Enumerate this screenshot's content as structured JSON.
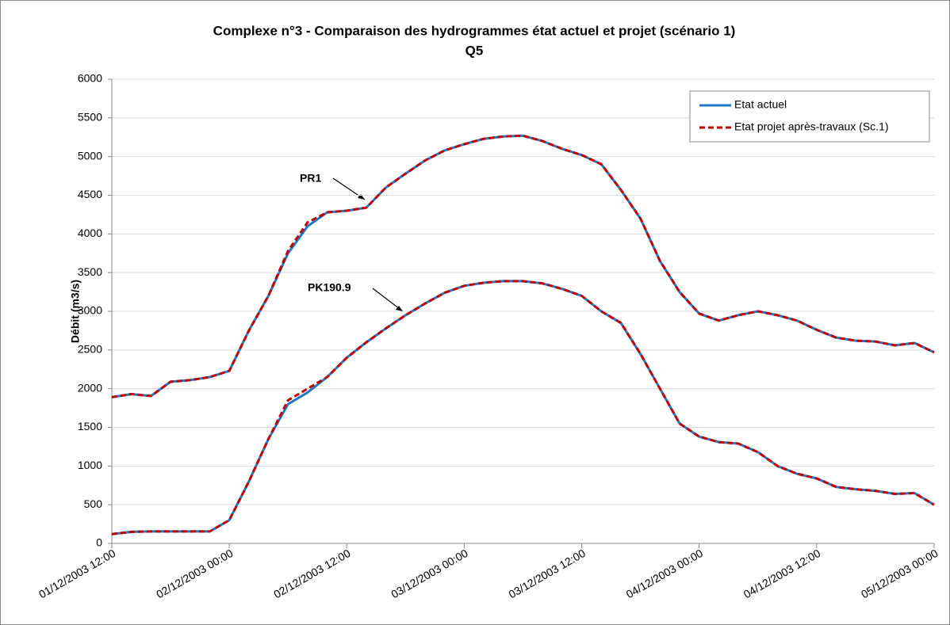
{
  "chart_data": {
    "type": "line",
    "title": "Complexe n°3 - Comparaison des hydrogrammes état actuel et projet (scénario 1)",
    "subtitle": "Q5",
    "y_label": "Débit (m3/s)",
    "annotations": [
      "PR1",
      "PK190.9"
    ],
    "x": [
      "2003-12-01T12:00",
      "2003-12-01T14:00",
      "2003-12-01T16:00",
      "2003-12-01T18:00",
      "2003-12-01T20:00",
      "2003-12-01T22:00",
      "2003-12-02T00:00",
      "2003-12-02T02:00",
      "2003-12-02T04:00",
      "2003-12-02T06:00",
      "2003-12-02T08:00",
      "2003-12-02T10:00",
      "2003-12-02T12:00",
      "2003-12-02T14:00",
      "2003-12-02T16:00",
      "2003-12-02T18:00",
      "2003-12-02T20:00",
      "2003-12-02T22:00",
      "2003-12-03T00:00",
      "2003-12-03T02:00",
      "2003-12-03T04:00",
      "2003-12-03T06:00",
      "2003-12-03T08:00",
      "2003-12-03T10:00",
      "2003-12-03T12:00",
      "2003-12-03T14:00",
      "2003-12-03T16:00",
      "2003-12-03T18:00",
      "2003-12-03T20:00",
      "2003-12-03T22:00",
      "2003-12-04T00:00",
      "2003-12-04T02:00",
      "2003-12-04T04:00",
      "2003-12-04T06:00",
      "2003-12-04T08:00",
      "2003-12-04T10:00",
      "2003-12-04T12:00",
      "2003-12-04T14:00",
      "2003-12-04T16:00",
      "2003-12-04T18:00",
      "2003-12-04T20:00",
      "2003-12-04T22:00",
      "2003-12-05T00:00"
    ],
    "series": [
      {
        "name": "Etat actuel",
        "color": "#1f78c8",
        "dashed": false,
        "values": [
          [
            1890,
            1930,
            1905,
            2090,
            2110,
            2150,
            2230,
            2750,
            3200,
            3750,
            4100,
            4280,
            4300,
            4340,
            4600,
            4780,
            4950,
            5080,
            5160,
            5230,
            5260,
            5270,
            5200,
            5100,
            5020,
            4900,
            4570,
            4200,
            3650,
            3250,
            2970,
            2880,
            2950,
            3000,
            2950,
            2880,
            2760,
            2660,
            2620,
            2610,
            2560,
            2590,
            2470
          ],
          [
            120,
            150,
            155,
            155,
            155,
            155,
            300,
            800,
            1350,
            1800,
            1950,
            2150,
            2400,
            2600,
            2780,
            2950,
            3100,
            3240,
            3330,
            3370,
            3390,
            3390,
            3360,
            3290,
            3200,
            3000,
            2850,
            2450,
            2000,
            1550,
            1380,
            1310,
            1290,
            1180,
            1000,
            900,
            840,
            730,
            700,
            680,
            640,
            650,
            500
          ]
        ]
      },
      {
        "name": "Etat projet après-travaux (Sc.1)",
        "color": "#c00000",
        "dashed": true,
        "values": [
          [
            1890,
            1930,
            1905,
            2090,
            2110,
            2150,
            2230,
            2750,
            3200,
            3780,
            4150,
            4280,
            4300,
            4340,
            4600,
            4780,
            4950,
            5080,
            5160,
            5230,
            5260,
            5270,
            5200,
            5100,
            5020,
            4900,
            4570,
            4200,
            3650,
            3250,
            2970,
            2880,
            2950,
            3000,
            2950,
            2880,
            2760,
            2660,
            2620,
            2610,
            2560,
            2590,
            2470
          ],
          [
            120,
            150,
            155,
            155,
            155,
            155,
            300,
            800,
            1350,
            1850,
            2000,
            2150,
            2400,
            2600,
            2780,
            2950,
            3100,
            3240,
            3330,
            3370,
            3390,
            3390,
            3360,
            3290,
            3200,
            3000,
            2850,
            2450,
            2000,
            1550,
            1380,
            1310,
            1290,
            1180,
            1000,
            900,
            840,
            730,
            700,
            680,
            640,
            650,
            500
          ]
        ]
      }
    ],
    "xlim": [
      "2003-12-01T12:00",
      "2003-12-05T00:00"
    ],
    "xticks": [
      {
        "value": "2003-12-01T12:00",
        "label": "01/12/2003 12:00"
      },
      {
        "value": "2003-12-02T00:00",
        "label": "02/12/2003 00:00"
      },
      {
        "value": "2003-12-02T12:00",
        "label": "02/12/2003 12:00"
      },
      {
        "value": "2003-12-03T00:00",
        "label": "03/12/2003 00:00"
      },
      {
        "value": "2003-12-03T12:00",
        "label": "03/12/2003 12:00"
      },
      {
        "value": "2003-12-04T00:00",
        "label": "04/12/2003 00:00"
      },
      {
        "value": "2003-12-04T12:00",
        "label": "04/12/2003 12:00"
      },
      {
        "value": "2003-12-05T00:00",
        "label": "05/12/2003 00:00"
      }
    ],
    "ylim": [
      0,
      6000
    ],
    "yticks": [
      0,
      500,
      1000,
      1500,
      2000,
      2500,
      3000,
      3500,
      4000,
      4500,
      5000,
      5500,
      6000
    ],
    "grid": true,
    "legend": "top-right"
  }
}
